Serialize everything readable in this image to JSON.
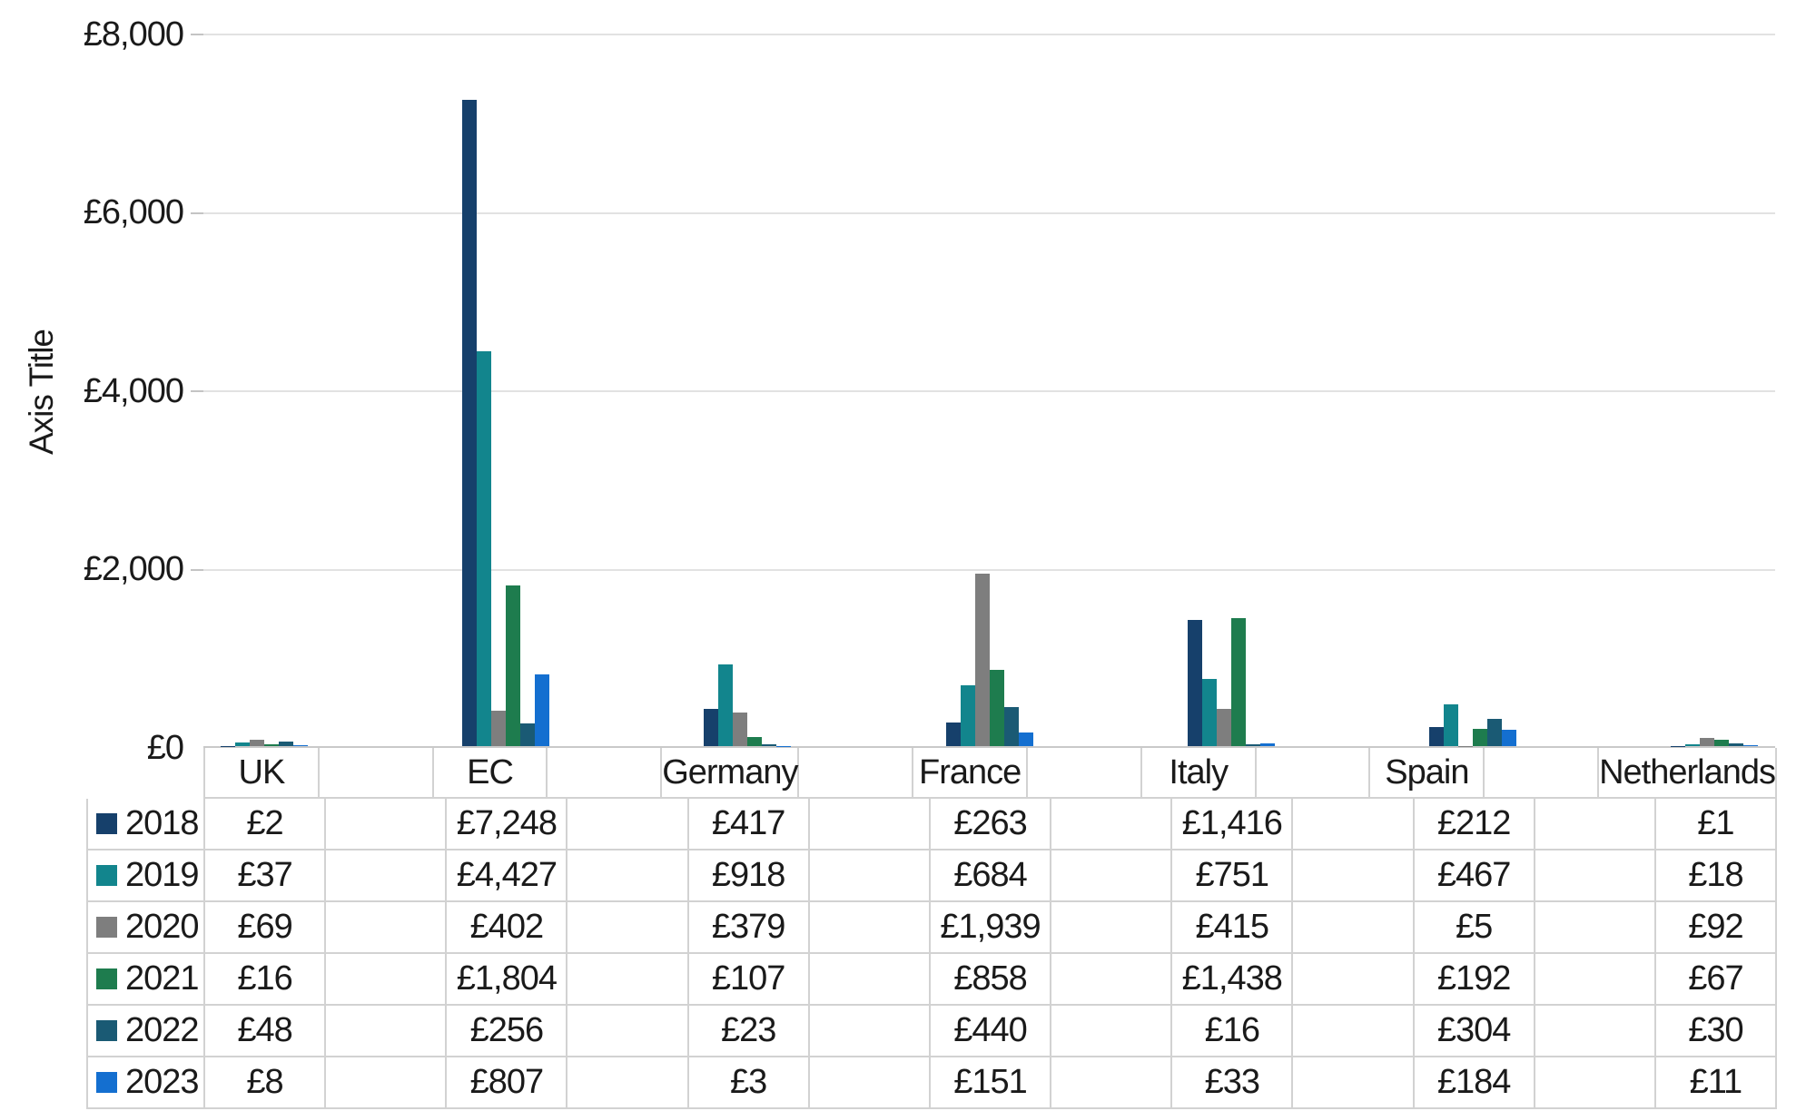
{
  "chart_data": {
    "type": "bar",
    "title": "",
    "y_axis": {
      "label": "Axis Title",
      "min": 0,
      "max": 8000,
      "ticks": [
        {
          "value": 0,
          "label": "£0"
        },
        {
          "value": 2000,
          "label": "£2,000"
        },
        {
          "value": 4000,
          "label": "£4,000"
        },
        {
          "value": 6000,
          "label": "£6,000"
        },
        {
          "value": 8000,
          "label": "£8,000"
        }
      ],
      "gridlines": true
    },
    "categories": [
      "UK",
      "EC",
      "Germany",
      "France",
      "Italy",
      "Spain",
      "Netherlands"
    ],
    "series": [
      {
        "name": "2018",
        "color": "#16406B",
        "values": [
          2,
          7248,
          417,
          263,
          1416,
          212,
          1
        ],
        "labels": [
          "£2",
          "£7,248",
          "£417",
          "£263",
          "£1,416",
          "£212",
          "£1"
        ]
      },
      {
        "name": "2019",
        "color": "#12858D",
        "values": [
          37,
          4427,
          918,
          684,
          751,
          467,
          18
        ],
        "labels": [
          "£37",
          "£4,427",
          "£918",
          "£684",
          "£751",
          "£467",
          "£18"
        ]
      },
      {
        "name": "2020",
        "color": "#7E7E7E",
        "values": [
          69,
          402,
          379,
          1939,
          415,
          5,
          92
        ],
        "labels": [
          "£69",
          "£402",
          "£379",
          "£1,939",
          "£415",
          "£5",
          "£92"
        ]
      },
      {
        "name": "2021",
        "color": "#1E7C4E",
        "values": [
          16,
          1804,
          107,
          858,
          1438,
          192,
          67
        ],
        "labels": [
          "£16",
          "£1,804",
          "£107",
          "£858",
          "£1,438",
          "£192",
          "£67"
        ]
      },
      {
        "name": "2022",
        "color": "#1A5A74",
        "values": [
          48,
          256,
          23,
          440,
          16,
          304,
          30
        ],
        "labels": [
          "£48",
          "£256",
          "£23",
          "£440",
          "£16",
          "£304",
          "£30"
        ]
      },
      {
        "name": "2023",
        "color": "#146FD0",
        "values": [
          8,
          807,
          3,
          151,
          33,
          184,
          11
        ],
        "labels": [
          "£8",
          "£807",
          "£3",
          "£151",
          "£33",
          "£184",
          "£11"
        ]
      }
    ],
    "legend_position": "data-table-left-column",
    "data_table_shown": true
  }
}
